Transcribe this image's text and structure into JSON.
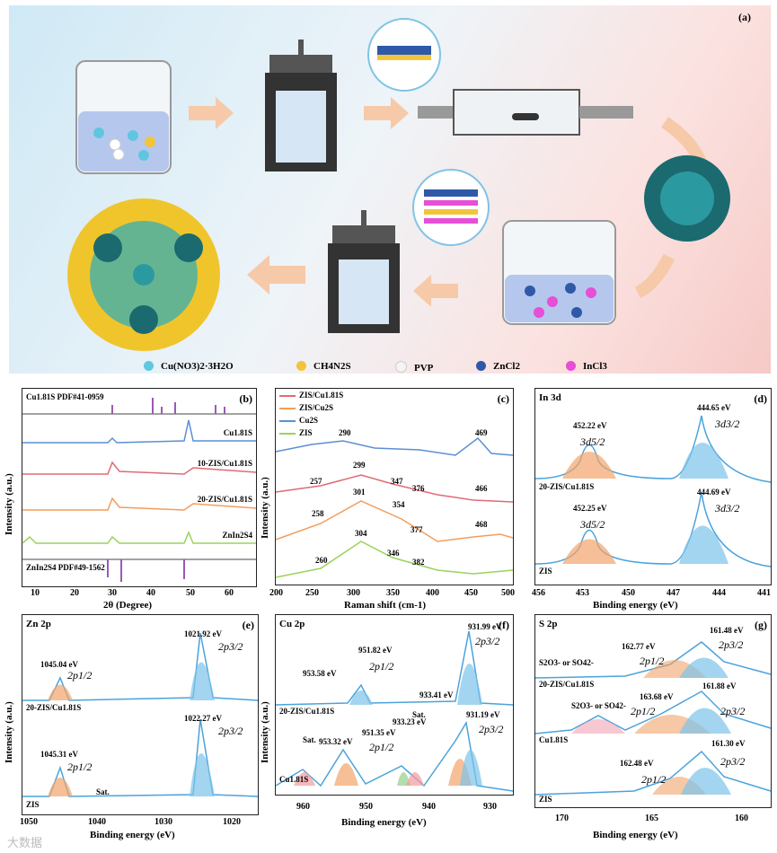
{
  "panel_a": {
    "label": "(a)",
    "legend": [
      {
        "label": "Cu(NO3)2·3H2O",
        "color": "#5ec7df"
      },
      {
        "label": "CH4N2S",
        "color": "#f2c43c"
      },
      {
        "label": "PVP",
        "color": "#f4f4f4"
      },
      {
        "label": "ZnCl2",
        "color": "#2f59a8"
      },
      {
        "label": "InCl3",
        "color": "#e64fd6"
      }
    ]
  },
  "panel_b": {
    "label": "(b)",
    "ref_top": "Cu1.81S PDF#41-0959",
    "ref_bottom": "ZnIn2S4 PDF#49-1562",
    "series": [
      "Cu1.81S",
      "10-ZIS/Cu1.81S",
      "20-ZIS/Cu1.81S",
      "ZnIn2S4"
    ],
    "xlabel": "2θ (Degree)",
    "ylabel": "Intensity (a.u.)",
    "xticks": [
      "10",
      "20",
      "30",
      "40",
      "50",
      "60"
    ]
  },
  "panel_c": {
    "label": "(c)",
    "legend": [
      "ZIS/Cu1.81S",
      "ZIS/Cu2S",
      "Cu2S",
      "ZIS"
    ],
    "peaks": {
      "cu2s": [
        "290",
        "469"
      ],
      "zis_cu181s": [
        "257",
        "299",
        "347",
        "376",
        "466"
      ],
      "zis_cu2s": [
        "258",
        "301",
        "354",
        "377",
        "468"
      ],
      "zis": [
        "260",
        "304",
        "346",
        "382"
      ]
    },
    "xlabel": "Raman shift (cm-1)",
    "ylabel": "Intensity (a.u.)",
    "xticks": [
      "200",
      "250",
      "300",
      "350",
      "400",
      "450",
      "500"
    ]
  },
  "panel_d": {
    "label": "(d)",
    "title": "In 3d",
    "top_sample": "20-ZIS/Cu1.81S",
    "bottom_sample": "ZIS",
    "peaks_top": [
      "452.22 eV",
      "444.65 eV"
    ],
    "peaks_bottom": [
      "452.25 eV",
      "444.69 eV"
    ],
    "orbitals": [
      "3d5/2",
      "3d3/2"
    ],
    "xlabel": "Binding energy (eV)",
    "xticks": [
      "456",
      "453",
      "450",
      "447",
      "444",
      "441"
    ]
  },
  "panel_e": {
    "label": "(e)",
    "title": "Zn 2p",
    "top_sample": "20-ZIS/Cu1.81S",
    "bottom_sample": "ZIS",
    "peaks_top": [
      "1045.04 eV",
      "1021.92 eV"
    ],
    "peaks_bottom": [
      "1045.31 eV",
      "1022.27 eV"
    ],
    "sat": "Sat.",
    "orbitals": [
      "2p1/2",
      "2p3/2"
    ],
    "xlabel": "Binding energy (eV)",
    "ylabel": "Intensity (a.u.)",
    "xticks": [
      "1050",
      "1040",
      "1030",
      "1020"
    ]
  },
  "panel_f": {
    "label": "(f)",
    "title": "Cu 2p",
    "top_sample": "20-ZIS/Cu1.81S",
    "bottom_sample": "Cu1.81S",
    "peaks_top": [
      "953.58 eV",
      "951.82 eV",
      "933.41 eV",
      "931.99 eV"
    ],
    "peaks_bottom": [
      "953.32 eV",
      "951.35 eV",
      "933.23 eV",
      "931.19 eV"
    ],
    "sat": "Sat.",
    "orbitals": [
      "2p1/2",
      "2p3/2"
    ],
    "xlabel": "Binding energy (eV)",
    "ylabel": "Intensity (a.u.)",
    "xticks": [
      "960",
      "950",
      "940",
      "930"
    ]
  },
  "panel_g": {
    "label": "(g)",
    "title": "S 2p",
    "samples": [
      "20-ZIS/Cu1.81S",
      "Cu1.81S",
      "ZIS"
    ],
    "sulfate": "S2O3- or SO42-",
    "peaks_1": [
      "162.77 eV",
      "161.48 eV"
    ],
    "peaks_2": [
      "163.68 eV",
      "161.88 eV"
    ],
    "peaks_3": [
      "162.48 eV",
      "161.30 eV"
    ],
    "orbitals": [
      "2p1/2",
      "2p3/2"
    ],
    "xlabel": "Binding energy (eV)",
    "xticks": [
      "170",
      "165",
      "160"
    ]
  },
  "watermark": "大数据"
}
